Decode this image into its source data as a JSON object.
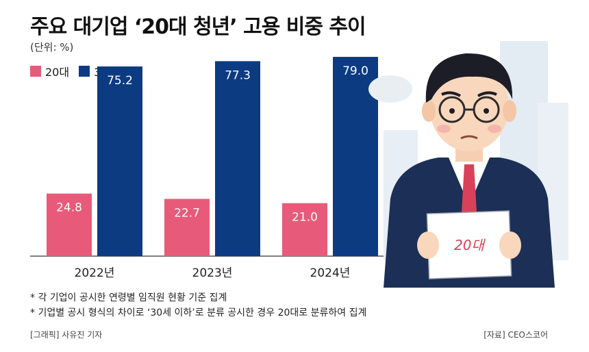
{
  "header": {
    "title": "주요 대기업 ‘20대 청년’ 고용 비중 추이",
    "unit": "(단위: %)"
  },
  "colors": {
    "series_20s": "#e85a79",
    "series_30s": "#0d3b82",
    "background_building": "#dfe8f2"
  },
  "chart_data": {
    "type": "bar",
    "categories": [
      "2022년",
      "2023년",
      "2024년"
    ],
    "series": [
      {
        "name": "20대",
        "values": [
          24.8,
          22.7,
          21.0
        ],
        "labels": [
          "24.8",
          "22.7",
          "21.0"
        ]
      },
      {
        "name": "30대이상",
        "values": [
          75.2,
          77.3,
          79.0
        ],
        "labels": [
          "75.2",
          "77.3",
          "79.0"
        ]
      }
    ],
    "ylim": [
      0,
      82
    ],
    "grid": false,
    "legend": "top-left",
    "data_labels": "inside-top"
  },
  "footnotes": [
    "* 각 기업이 공시한 연령별 임직원 현황 기준 집계",
    "* 기업별 공시 형식의 차이로 ‘30세 이하’로 분류 공시한 경우 20대로 분류하여 집계"
  ],
  "credits": {
    "graphic": "[그래픽] 사유진 기자",
    "source": "[자료] CEO스코어"
  },
  "illustration": {
    "sign_text": "20대",
    "icon": "worried-man-holding-sign"
  }
}
